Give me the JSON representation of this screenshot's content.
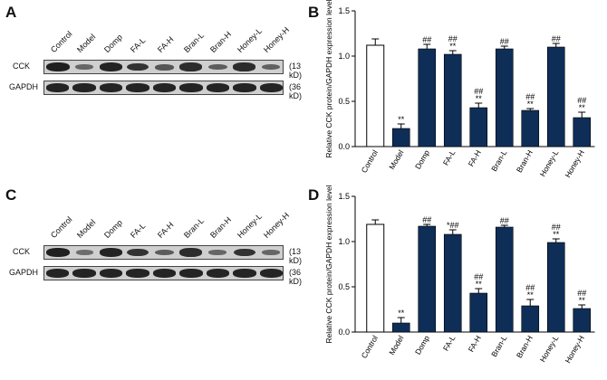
{
  "panels": {
    "a": {
      "letter": "A"
    },
    "b": {
      "letter": "B"
    },
    "c": {
      "letter": "C"
    },
    "d": {
      "letter": "D"
    }
  },
  "lanes": [
    "Control",
    "Model",
    "Domp",
    "FA-L",
    "FA-H",
    "Bran-L",
    "Bran-H",
    "Honey-L",
    "Honey-H"
  ],
  "blot_rows": [
    {
      "protein": "CCK",
      "size": "(13 kD)"
    },
    {
      "protein": "GAPDH",
      "size": "(36 kD)"
    }
  ],
  "colors": {
    "control_bar": "#ffffff",
    "treatment_bar": "#0e2e57",
    "band": "#1a1a1a"
  },
  "chart_data": [
    {
      "panel": "B",
      "type": "bar",
      "categories": [
        "Control",
        "Model",
        "Domp",
        "FA-L",
        "FA-H",
        "Bran-L",
        "Bran-H",
        "Honey-L",
        "Honey-H"
      ],
      "values": [
        1.12,
        0.2,
        1.08,
        1.02,
        0.43,
        1.08,
        0.4,
        1.1,
        0.32
      ],
      "errors": [
        0.07,
        0.05,
        0.05,
        0.04,
        0.05,
        0.03,
        0.02,
        0.04,
        0.06
      ],
      "annotations": [
        [
          "",
          ""
        ],
        [
          "",
          "**"
        ],
        [
          "",
          "##"
        ],
        [
          "##",
          "**"
        ],
        [
          "##",
          "**"
        ],
        [
          "",
          "##"
        ],
        [
          "##",
          "**"
        ],
        [
          "",
          "##"
        ],
        [
          "##",
          "**"
        ]
      ],
      "ylabel": "Relative CCK protein/GAPDH expression level",
      "ylim": [
        0,
        1.5
      ],
      "yticks": [
        "0.0",
        "0.5",
        "1.0",
        "1.5"
      ]
    },
    {
      "panel": "D",
      "type": "bar",
      "categories": [
        "Control",
        "Model",
        "Domp",
        "FA-L",
        "FA-H",
        "Bran-L",
        "Bran-H",
        "Honey-L",
        "Honey-H"
      ],
      "values": [
        1.19,
        0.1,
        1.17,
        1.08,
        0.43,
        1.16,
        0.29,
        0.99,
        0.26
      ],
      "errors": [
        0.05,
        0.06,
        0.02,
        0.05,
        0.05,
        0.02,
        0.07,
        0.04,
        0.04
      ],
      "annotations": [
        [
          "",
          ""
        ],
        [
          "",
          "**"
        ],
        [
          "",
          "##"
        ],
        [
          "",
          "*##"
        ],
        [
          "##",
          "**"
        ],
        [
          "",
          "##"
        ],
        [
          "##",
          "**"
        ],
        [
          "##",
          "**"
        ],
        [
          "##",
          "**"
        ]
      ],
      "ylabel": "Relative CCK protein/GAPDH expression level",
      "ylim": [
        0,
        1.5
      ],
      "yticks": [
        "0.0",
        "0.5",
        "1.0",
        "1.5"
      ]
    }
  ],
  "blot_intensity": [
    {
      "cck": [
        0.95,
        0.35,
        0.9,
        0.8,
        0.5,
        0.85,
        0.45,
        0.85,
        0.4
      ],
      "gapdh": [
        0.9,
        0.9,
        0.9,
        0.9,
        0.9,
        0.9,
        0.9,
        0.9,
        0.9
      ]
    },
    {
      "cck": [
        0.95,
        0.3,
        0.9,
        0.8,
        0.45,
        0.85,
        0.35,
        0.8,
        0.35
      ],
      "gapdh": [
        0.9,
        0.9,
        0.9,
        0.9,
        0.9,
        0.9,
        0.9,
        0.9,
        0.9
      ]
    }
  ]
}
